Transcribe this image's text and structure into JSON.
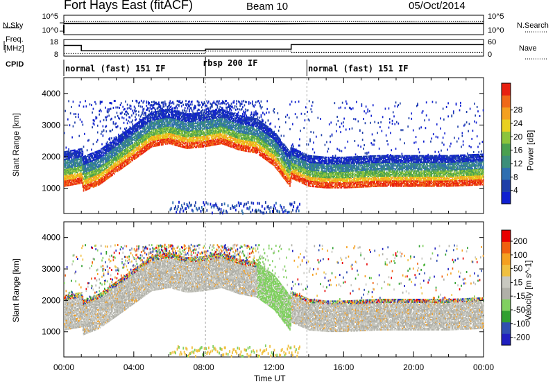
{
  "header": {
    "title": "Fort Hays East (fitACF)",
    "beam": "Beam 10",
    "date": "05/Oct/2014"
  },
  "left_labels": {
    "nsky": "N.Sky",
    "freq": "Freq.",
    "mhz": "[MHz]",
    "cpid": "CPID"
  },
  "right_labels": {
    "nsearch": "N.Search",
    "nave": "Nave"
  },
  "cpid_segments": [
    "normal (fast) 151 IF",
    "rbsp 200 IF",
    "normal (fast) 151 IF"
  ],
  "x_axis": {
    "label": "Time UT",
    "ticks": [
      "00:00",
      "04:00",
      "08:00",
      "12:00",
      "16:00",
      "20:00",
      "00:00"
    ]
  },
  "colors": {
    "power": [
      "#1020d0",
      "#1e3fa8",
      "#2f6fb0",
      "#3d8f7a",
      "#4aa050",
      "#8cc43c",
      "#e8d020",
      "#f4a020",
      "#f06818",
      "#e82010"
    ],
    "velocity": [
      "#e80000",
      "#f06010",
      "#f5a020",
      "#f0c040",
      "#c8c8c0",
      "#b0b0a8",
      "#80d060",
      "#30a030",
      "#3050b0",
      "#2020c0"
    ]
  },
  "chart_data": [
    {
      "type": "line",
      "title": "Fort Hays East (fitACF)",
      "panel": "noise",
      "y_left_ticks": [
        "10^5",
        "10^0"
      ],
      "y_right_ticks": [
        "10^5",
        "10^0"
      ],
      "series": [
        {
          "name": "N.Sky",
          "x": [
            0,
            2,
            4,
            6,
            8,
            10,
            12,
            14,
            16,
            18,
            20,
            22,
            24
          ],
          "values": [
            3000,
            3500,
            3200,
            3000,
            2000,
            1500,
            1200,
            1800,
            2500,
            3000,
            3200,
            3500,
            3000
          ]
        },
        {
          "name": "N.Search",
          "x": [
            0,
            4,
            8,
            12,
            16,
            20,
            24
          ],
          "values": [
            5000,
            5000,
            4000,
            3000,
            4500,
            5000,
            5000
          ]
        }
      ]
    },
    {
      "type": "line",
      "panel": "frequency-nave",
      "y_left_ticks": [
        "18",
        "8"
      ],
      "y_right_ticks": [
        "60",
        "0"
      ],
      "series": [
        {
          "name": "Freq.",
          "x": [
            0,
            1,
            1,
            8.1,
            8.1,
            13,
            13,
            24
          ],
          "values": [
            15.5,
            15.5,
            12,
            12,
            13,
            13,
            16,
            16
          ]
        },
        {
          "name": "Nave",
          "x": [
            0,
            1,
            1,
            8.1,
            8.1,
            13,
            13,
            24
          ],
          "values": [
            10,
            10,
            10,
            10,
            20,
            20,
            15,
            15
          ]
        }
      ]
    },
    {
      "type": "heatmap",
      "panel": "power",
      "xlabel": "Time UT",
      "ylabel": "Slant Range [km]",
      "xlim": [
        0,
        24
      ],
      "ylim": [
        200,
        4500
      ],
      "y_ticks": [
        1000,
        2000,
        3000,
        4000
      ],
      "colorbar": {
        "label": "Power [dB]",
        "ticks": [
          4,
          8,
          12,
          16,
          20,
          24,
          28
        ]
      },
      "main_band": {
        "hours": [
          0,
          1,
          1.1,
          2,
          3,
          4,
          5,
          6,
          7,
          8,
          9,
          10,
          11,
          12,
          12.9,
          13,
          14,
          15,
          16,
          18,
          20,
          22,
          24
        ],
        "range_km": [
          1250,
          1350,
          1100,
          1300,
          1700,
          2100,
          2500,
          2600,
          2450,
          2500,
          2600,
          2400,
          2300,
          1900,
          1250,
          1500,
          1250,
          1200,
          1200,
          1250,
          1250,
          1250,
          1300
        ]
      }
    },
    {
      "type": "heatmap",
      "panel": "velocity",
      "xlabel": "Time UT",
      "ylabel": "Slant Range [km]",
      "xlim": [
        0,
        24
      ],
      "ylim": [
        200,
        4500
      ],
      "y_ticks": [
        1000,
        2000,
        3000,
        4000
      ],
      "colorbar": {
        "label": "Velocity [m s^-1]",
        "ticks": [
          200,
          100,
          50,
          15,
          -15,
          -50,
          -100,
          -200
        ]
      }
    }
  ]
}
